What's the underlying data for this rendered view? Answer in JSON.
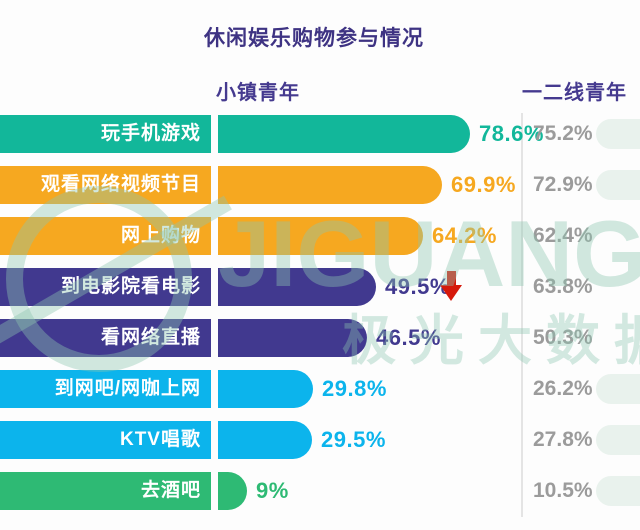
{
  "title": "休闲娱乐购物参与情况",
  "group_headers": {
    "left": "小镇青年",
    "right": "一二线青年"
  },
  "chart_data": {
    "type": "bar",
    "orientation": "horizontal",
    "title": "休闲娱乐购物参与情况",
    "categories": [
      "玩手机游戏",
      "观看网络视频节目",
      "网上购物",
      "到电影院看电影",
      "看网络直播",
      "到网吧/网咖上网",
      "KTV唱歌",
      "去酒吧"
    ],
    "series": [
      {
        "name": "小镇青年",
        "values": [
          78.6,
          69.9,
          64.2,
          49.5,
          46.5,
          29.8,
          29.5,
          9
        ]
      },
      {
        "name": "一二线青年",
        "values": [
          75.2,
          72.9,
          62.4,
          63.8,
          50.3,
          26.2,
          27.8,
          10.5
        ]
      }
    ],
    "value_suffix": "%",
    "xlim": [
      0,
      80
    ],
    "grid": false,
    "legend_position": "column-headers-top",
    "annotations": [
      {
        "category": "到电影院看电影",
        "symbol": "red-down-arrow"
      }
    ]
  },
  "rows": [
    {
      "label": "玩手机游戏",
      "value": 78.6,
      "value_label": "78.6%",
      "right_label": "75.2%",
      "color": "#12b79a",
      "arrow": false,
      "blob": true
    },
    {
      "label": "观看网络视频节目",
      "value": 69.9,
      "value_label": "69.9%",
      "right_label": "72.9%",
      "color": "#f6a820",
      "arrow": false,
      "blob": true
    },
    {
      "label": "网上购物",
      "value": 64.2,
      "value_label": "64.2%",
      "right_label": "62.4%",
      "color": "#f6a820",
      "arrow": false,
      "blob": false
    },
    {
      "label": "到电影院看电影",
      "value": 49.5,
      "value_label": "49.5%",
      "right_label": "63.8%",
      "color": "#41398f",
      "arrow": true,
      "blob": false
    },
    {
      "label": "看网络直播",
      "value": 46.5,
      "value_label": "46.5%",
      "right_label": "50.3%",
      "color": "#41398f",
      "arrow": false,
      "blob": false
    },
    {
      "label": "到网吧/网咖上网",
      "value": 29.8,
      "value_label": "29.8%",
      "right_label": "26.2%",
      "color": "#0cb4ec",
      "arrow": false,
      "blob": true
    },
    {
      "label": "KTV唱歌",
      "value": 29.5,
      "value_label": "29.5%",
      "right_label": "27.8%",
      "color": "#0cb4ec",
      "arrow": false,
      "blob": true
    },
    {
      "label": "去酒吧",
      "value": 9,
      "value_label": "9%",
      "right_label": "10.5%",
      "color": "#2eba74",
      "arrow": false,
      "blob": true
    }
  ],
  "watermark": {
    "brand": "JIGUANG",
    "brand_cn": "极光大数据"
  },
  "colors": {
    "title": "#3e3383",
    "teal": "#12b79a",
    "orange": "#f6a820",
    "purple": "#41398f",
    "blue": "#0cb4ec",
    "green": "#2eba74",
    "peer_value_gray": "#9b9b9b",
    "arrow_red": "#d6190b",
    "divider": "#e4e4e4",
    "watermark_teal": "rgba(140,198,175,0.40)"
  }
}
